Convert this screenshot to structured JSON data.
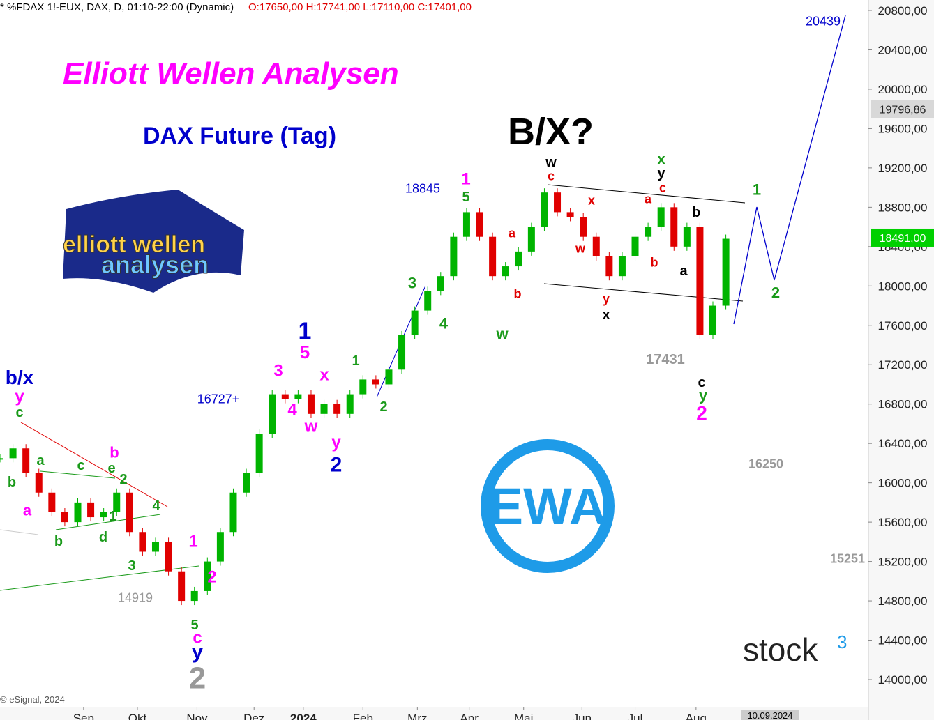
{
  "header": {
    "symbol": "* %FDAX 1!-EUX, DAX, D, 01:10-22:00 (Dynamic)",
    "ohlc": "O:17650,00 H:17741,00 L:17110,00 C:17401,00"
  },
  "chart_data": {
    "type": "candlestick-close",
    "title": "Elliott Wellen Analysen",
    "subtitle": "DAX Future (Tag)",
    "headline": "B/X?",
    "x": [
      0,
      1,
      2,
      3,
      4,
      5,
      6,
      7,
      8,
      9,
      10,
      11,
      12,
      13,
      14,
      15,
      16,
      17,
      18,
      19,
      20,
      21,
      22,
      23,
      24,
      25,
      26,
      27,
      28,
      29,
      30,
      31,
      32,
      33,
      34,
      35,
      36,
      37,
      38,
      39,
      40,
      41,
      42,
      43,
      44,
      45,
      46,
      47,
      48,
      49,
      50,
      51,
      52,
      53,
      54,
      55,
      56
    ],
    "values": [
      16250,
      16350,
      16100,
      15900,
      15700,
      15600,
      15800,
      15650,
      15700,
      15900,
      15500,
      15300,
      15400,
      15100,
      14800,
      14900,
      15200,
      15500,
      15900,
      16100,
      16500,
      16900,
      16850,
      16900,
      16700,
      16800,
      16700,
      16900,
      17050,
      17000,
      17150,
      17500,
      17750,
      17950,
      18100,
      18500,
      18750,
      18500,
      18100,
      18200,
      18350,
      18600,
      18950,
      18750,
      18700,
      18500,
      18300,
      18100,
      18300,
      18500,
      18600,
      18800,
      18400,
      18600,
      17500,
      17800,
      18480
    ],
    "up_color": "#00b400",
    "down_color": "#e00000",
    "xlim": [
      0,
      67
    ],
    "xticks": [
      {
        "value": 6.45,
        "label": "Sep"
      },
      {
        "value": 10.6,
        "label": "Okt"
      },
      {
        "value": 15.2,
        "label": "Nov"
      },
      {
        "value": 19.6,
        "label": "Dez"
      },
      {
        "value": 23.4,
        "label": "2024"
      },
      {
        "value": 28,
        "label": "Feb"
      },
      {
        "value": 32.2,
        "label": "Mrz"
      },
      {
        "value": 36.2,
        "label": "Apr"
      },
      {
        "value": 40.4,
        "label": "Mai"
      },
      {
        "value": 44.9,
        "label": "Jun"
      },
      {
        "value": 49,
        "label": "Jul"
      },
      {
        "value": 53.7,
        "label": "Aug"
      }
    ],
    "ylim": [
      14000,
      20800
    ],
    "yticks": [
      {
        "value": 14000,
        "label": "14000,00"
      },
      {
        "value": 14400,
        "label": "14400,00"
      },
      {
        "value": 14800,
        "label": "14800,00"
      },
      {
        "value": 15200,
        "label": "15200,00"
      },
      {
        "value": 15600,
        "label": "15600,00"
      },
      {
        "value": 16000,
        "label": "16000,00"
      },
      {
        "value": 16400,
        "label": "16400,00"
      },
      {
        "value": 16800,
        "label": "16800,00"
      },
      {
        "value": 17200,
        "label": "17200,00"
      },
      {
        "value": 17600,
        "label": "17600,00"
      },
      {
        "value": 18000,
        "label": "18000,00"
      },
      {
        "value": 18400,
        "label": "18400,00"
      },
      {
        "value": 18800,
        "label": "18800,00"
      },
      {
        "value": 19200,
        "label": "19200,00"
      },
      {
        "value": 19600,
        "label": "19600,00"
      },
      {
        "value": 20000,
        "label": "20000,00"
      },
      {
        "value": 20400,
        "label": "20400,00"
      },
      {
        "value": 20800,
        "label": "20800,00"
      }
    ],
    "price_markers": [
      {
        "value": 19796.86,
        "label": "19796,86",
        "color": "#d8d8d8"
      },
      {
        "value": 18491,
        "label": "18491,00",
        "color": "#00d000"
      }
    ]
  },
  "annotations": [
    {
      "text": "18845",
      "color": "#0000cc"
    },
    {
      "text": "1",
      "color": "#ff00ff"
    },
    {
      "text": "5",
      "color": "#1a9a1a"
    },
    {
      "text": "w",
      "color": "#000000"
    },
    {
      "text": "c",
      "color": "#e00000"
    },
    {
      "text": "x",
      "color": "#1a9a1a"
    },
    {
      "text": "y",
      "color": "#000000"
    },
    {
      "text": "c",
      "color": "#e00000"
    },
    {
      "text": "a",
      "color": "#e00000"
    },
    {
      "text": "x",
      "color": "#e00000"
    },
    {
      "text": "b",
      "color": "#000000"
    },
    {
      "text": "1",
      "color": "#1a9a1a"
    },
    {
      "text": "2",
      "color": "#1a9a1a"
    },
    {
      "text": "20439",
      "color": "#0000cc"
    },
    {
      "text": "a",
      "color": "#e00000"
    },
    {
      "text": "w",
      "color": "#e00000"
    },
    {
      "text": "b",
      "color": "#e00000"
    },
    {
      "text": "a",
      "color": "#000000"
    },
    {
      "text": "b",
      "color": "#e00000"
    },
    {
      "text": "y",
      "color": "#e00000"
    },
    {
      "text": "x",
      "color": "#000000"
    },
    {
      "text": "w",
      "color": "#1a9a1a"
    },
    {
      "text": "3",
      "color": "#1a9a1a"
    },
    {
      "text": "4",
      "color": "#1a9a1a"
    },
    {
      "text": "17431",
      "color": "#999999"
    },
    {
      "text": "c",
      "color": "#000000"
    },
    {
      "text": "y",
      "color": "#1a9a1a"
    },
    {
      "text": "2",
      "color": "#ff00ff"
    },
    {
      "text": "16250",
      "color": "#999999"
    },
    {
      "text": "15251",
      "color": "#999999"
    },
    {
      "text": "1",
      "color": "#0000cc"
    },
    {
      "text": "5",
      "color": "#ff00ff"
    },
    {
      "text": "3",
      "color": "#ff00ff"
    },
    {
      "text": "x",
      "color": "#ff00ff"
    },
    {
      "text": "16727+",
      "color": "#0000cc"
    },
    {
      "text": "4",
      "color": "#ff00ff"
    },
    {
      "text": "w",
      "color": "#ff00ff"
    },
    {
      "text": "y",
      "color": "#ff00ff"
    },
    {
      "text": "2",
      "color": "#0000cc"
    },
    {
      "text": "1",
      "color": "#1a9a1a"
    },
    {
      "text": "2",
      "color": "#1a9a1a"
    },
    {
      "text": "b/x",
      "color": "#0000cc"
    },
    {
      "text": "y",
      "color": "#ff00ff"
    },
    {
      "text": "c",
      "color": "#1a9a1a"
    },
    {
      "text": "b",
      "color": "#ff00ff"
    },
    {
      "text": "a",
      "color": "#1a9a1a"
    },
    {
      "text": "c",
      "color": "#1a9a1a"
    },
    {
      "text": "e",
      "color": "#1a9a1a"
    },
    {
      "text": "2",
      "color": "#1a9a1a"
    },
    {
      "text": "b",
      "color": "#1a9a1a"
    },
    {
      "text": "1",
      "color": "#1a9a1a"
    },
    {
      "text": "4",
      "color": "#1a9a1a"
    },
    {
      "text": "a",
      "color": "#ff00ff"
    },
    {
      "text": "d",
      "color": "#1a9a1a"
    },
    {
      "text": "b",
      "color": "#1a9a1a"
    },
    {
      "text": "3",
      "color": "#1a9a1a"
    },
    {
      "text": "1",
      "color": "#ff00ff"
    },
    {
      "text": "2",
      "color": "#ff00ff"
    },
    {
      "text": "14919",
      "color": "#999999"
    },
    {
      "text": "5",
      "color": "#1a9a1a"
    },
    {
      "text": "c",
      "color": "#ff00ff"
    },
    {
      "text": "y",
      "color": "#0000cc"
    },
    {
      "text": "2",
      "color": "#999999"
    }
  ],
  "branding": {
    "logo_line1": "elliott wellen",
    "logo_line2": "analysen",
    "badge": "EWA",
    "provider": "stock",
    "provider_sup": "3"
  },
  "footer": {
    "source": "© eSignal, 2024",
    "date_tag": "10.09.2024"
  }
}
